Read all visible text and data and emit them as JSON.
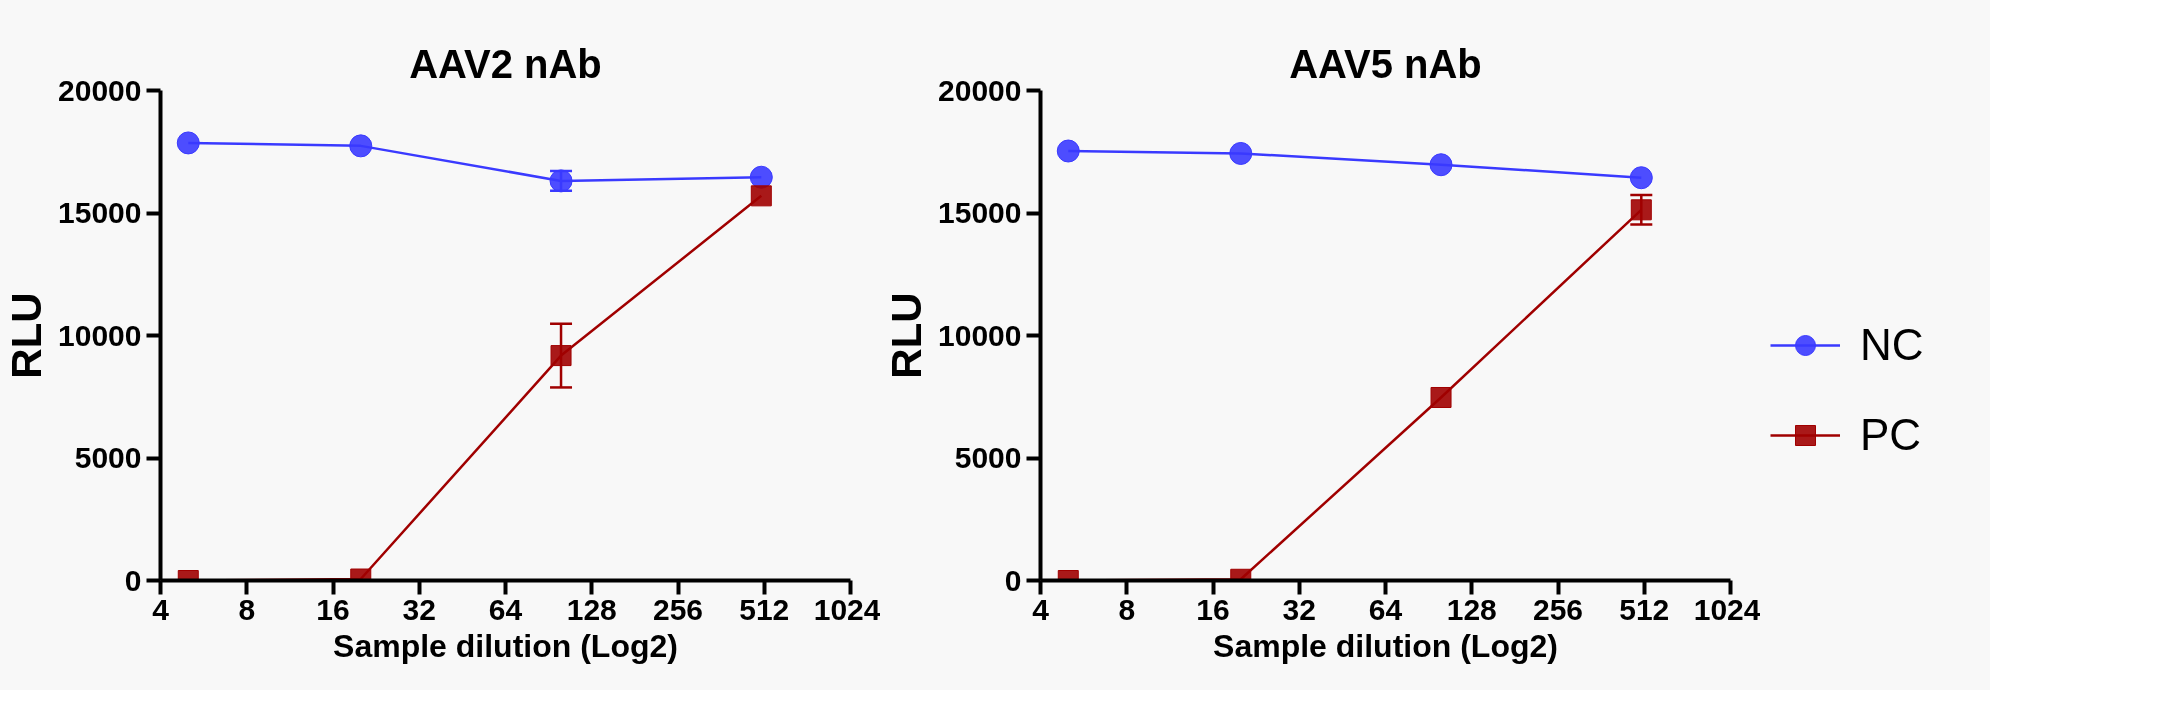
{
  "chart_data": [
    {
      "type": "line",
      "title": "AAV2 nAb",
      "xlabel": "Sample dilution (Log2)",
      "ylabel": "RLU",
      "x": [
        5,
        20,
        100,
        500
      ],
      "log": "x",
      "grid": false,
      "line_style": "solid",
      "xlim": [
        4,
        1024
      ],
      "xticks": [
        4,
        8,
        16,
        32,
        64,
        128,
        256,
        512,
        1024
      ],
      "ylim": [
        0,
        20000
      ],
      "yticks": [
        0,
        5000,
        10000,
        15000,
        20000
      ],
      "series": [
        {
          "color": "#3a3aff",
          "marker": "circle",
          "values": [
            17860,
            17740,
            16310,
            16460
          ],
          "errors": [
            null,
            null,
            400,
            null
          ]
        },
        {
          "color": "#a00000",
          "marker": "square",
          "values": [
            0,
            60,
            9180,
            15700
          ],
          "errors": [
            null,
            null,
            1300,
            null
          ]
        }
      ]
    },
    {
      "type": "line",
      "title": "AAV5 nAb",
      "xlabel": "Sample dilution (Log2)",
      "ylabel": "RLU",
      "x": [
        5,
        20,
        100,
        500
      ],
      "log": "x",
      "grid": false,
      "line_style": "solid",
      "legend": "right",
      "xlim": [
        4,
        1024
      ],
      "xticks": [
        4,
        8,
        16,
        32,
        64,
        128,
        256,
        512,
        1024
      ],
      "ylim": [
        0,
        20000
      ],
      "yticks": [
        0,
        5000,
        10000,
        15000,
        20000
      ],
      "series": [
        {
          "name": "NC",
          "color": "#3a3aff",
          "marker": "circle",
          "values": [
            17530,
            17430,
            16970,
            16440
          ]
        },
        {
          "name": "PC",
          "color": "#a00000",
          "marker": "square",
          "values": [
            0,
            50,
            7470,
            15130
          ],
          "errors": [
            null,
            null,
            null,
            600
          ]
        }
      ]
    }
  ]
}
